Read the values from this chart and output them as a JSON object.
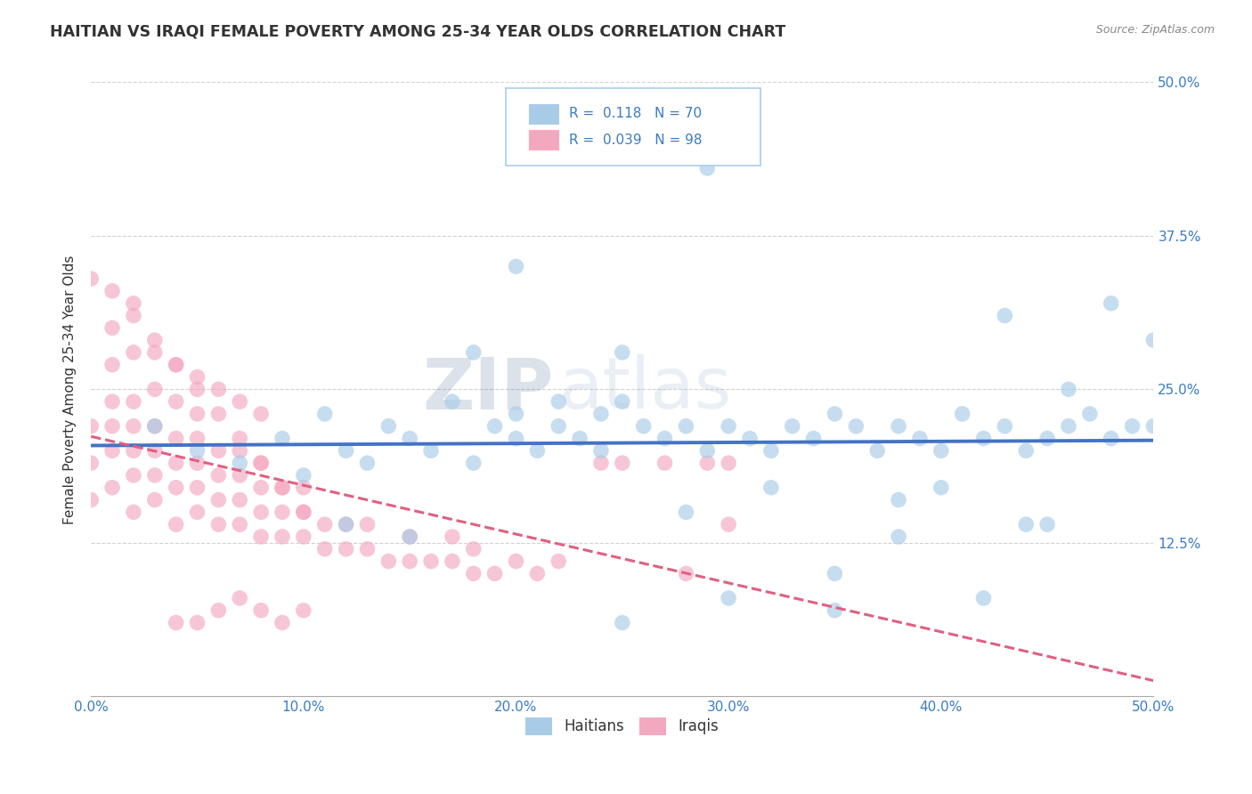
{
  "title": "HAITIAN VS IRAQI FEMALE POVERTY AMONG 25-34 YEAR OLDS CORRELATION CHART",
  "source": "Source: ZipAtlas.com",
  "ylabel": "Female Poverty Among 25-34 Year Olds",
  "xmin": 0.0,
  "xmax": 0.5,
  "ymin": 0.0,
  "ymax": 0.5,
  "ytick_vals": [
    0.0,
    0.125,
    0.25,
    0.375,
    0.5
  ],
  "ytick_labels_right": [
    "",
    "12.5%",
    "25.0%",
    "37.5%",
    "50.0%"
  ],
  "xtick_vals": [
    0.0,
    0.1,
    0.2,
    0.3,
    0.4,
    0.5
  ],
  "xtick_labels": [
    "0.0%",
    "10.0%",
    "20.0%",
    "30.0%",
    "40.0%",
    "50.0%"
  ],
  "legend_labels": [
    "Haitians",
    "Iraqis"
  ],
  "r_haitians": "0.118",
  "n_haitians": "70",
  "r_iraqis": "0.039",
  "n_iraqis": "98",
  "haitian_color": "#A8CBE8",
  "iraqi_color": "#F4A8C0",
  "haitian_line_color": "#4472C4",
  "iraqi_line_color": "#E06080",
  "background_color": "#FFFFFF",
  "watermark_zip": "ZIP",
  "watermark_atlas": "atlas",
  "grid_color": "#CCCCCC",
  "title_color": "#333333",
  "axis_color": "#3A7CC3",
  "source_color": "#888888",
  "haitian_x": [
    0.03,
    0.05,
    0.07,
    0.09,
    0.1,
    0.11,
    0.12,
    0.13,
    0.14,
    0.15,
    0.16,
    0.17,
    0.18,
    0.19,
    0.2,
    0.2,
    0.21,
    0.22,
    0.22,
    0.23,
    0.24,
    0.24,
    0.25,
    0.26,
    0.27,
    0.28,
    0.29,
    0.3,
    0.31,
    0.32,
    0.33,
    0.34,
    0.35,
    0.36,
    0.37,
    0.38,
    0.39,
    0.4,
    0.41,
    0.42,
    0.43,
    0.44,
    0.45,
    0.46,
    0.47,
    0.48,
    0.49,
    0.5,
    0.29,
    0.5,
    0.45,
    0.4,
    0.38,
    0.35,
    0.42,
    0.44,
    0.32,
    0.28,
    0.25,
    0.2,
    0.18,
    0.15,
    0.12,
    0.48,
    0.46,
    0.43,
    0.38,
    0.35,
    0.3,
    0.25
  ],
  "haitian_y": [
    0.22,
    0.2,
    0.19,
    0.21,
    0.18,
    0.23,
    0.2,
    0.19,
    0.22,
    0.21,
    0.2,
    0.24,
    0.19,
    0.22,
    0.21,
    0.23,
    0.2,
    0.24,
    0.22,
    0.21,
    0.23,
    0.2,
    0.24,
    0.22,
    0.21,
    0.22,
    0.2,
    0.22,
    0.21,
    0.2,
    0.22,
    0.21,
    0.23,
    0.22,
    0.2,
    0.22,
    0.21,
    0.2,
    0.23,
    0.21,
    0.22,
    0.2,
    0.21,
    0.22,
    0.23,
    0.21,
    0.22,
    0.22,
    0.43,
    0.29,
    0.14,
    0.17,
    0.16,
    0.1,
    0.08,
    0.14,
    0.17,
    0.15,
    0.28,
    0.35,
    0.28,
    0.13,
    0.14,
    0.32,
    0.25,
    0.31,
    0.13,
    0.07,
    0.08,
    0.06
  ],
  "iraqi_x": [
    0.0,
    0.0,
    0.0,
    0.01,
    0.01,
    0.01,
    0.01,
    0.01,
    0.02,
    0.02,
    0.02,
    0.02,
    0.02,
    0.02,
    0.03,
    0.03,
    0.03,
    0.03,
    0.03,
    0.04,
    0.04,
    0.04,
    0.04,
    0.04,
    0.05,
    0.05,
    0.05,
    0.05,
    0.05,
    0.06,
    0.06,
    0.06,
    0.06,
    0.07,
    0.07,
    0.07,
    0.07,
    0.08,
    0.08,
    0.08,
    0.08,
    0.09,
    0.09,
    0.09,
    0.1,
    0.1,
    0.1,
    0.11,
    0.11,
    0.12,
    0.12,
    0.13,
    0.13,
    0.14,
    0.15,
    0.15,
    0.16,
    0.17,
    0.17,
    0.18,
    0.18,
    0.19,
    0.2,
    0.21,
    0.22,
    0.24,
    0.25,
    0.27,
    0.29,
    0.3,
    0.01,
    0.02,
    0.03,
    0.04,
    0.05,
    0.06,
    0.07,
    0.08,
    0.28,
    0.3,
    0.0,
    0.01,
    0.02,
    0.03,
    0.04,
    0.05,
    0.06,
    0.07,
    0.08,
    0.09,
    0.1,
    0.04,
    0.05,
    0.06,
    0.07,
    0.08,
    0.09,
    0.1
  ],
  "iraqi_y": [
    0.16,
    0.19,
    0.22,
    0.17,
    0.2,
    0.22,
    0.24,
    0.27,
    0.15,
    0.18,
    0.2,
    0.22,
    0.24,
    0.28,
    0.16,
    0.18,
    0.2,
    0.22,
    0.25,
    0.14,
    0.17,
    0.19,
    0.21,
    0.24,
    0.15,
    0.17,
    0.19,
    0.21,
    0.23,
    0.14,
    0.16,
    0.18,
    0.2,
    0.14,
    0.16,
    0.18,
    0.2,
    0.13,
    0.15,
    0.17,
    0.19,
    0.13,
    0.15,
    0.17,
    0.13,
    0.15,
    0.17,
    0.12,
    0.14,
    0.12,
    0.14,
    0.12,
    0.14,
    0.11,
    0.11,
    0.13,
    0.11,
    0.11,
    0.13,
    0.1,
    0.12,
    0.1,
    0.11,
    0.1,
    0.11,
    0.19,
    0.19,
    0.19,
    0.19,
    0.19,
    0.3,
    0.32,
    0.28,
    0.27,
    0.26,
    0.25,
    0.24,
    0.23,
    0.1,
    0.14,
    0.34,
    0.33,
    0.31,
    0.29,
    0.27,
    0.25,
    0.23,
    0.21,
    0.19,
    0.17,
    0.15,
    0.06,
    0.06,
    0.07,
    0.08,
    0.07,
    0.06,
    0.07
  ]
}
